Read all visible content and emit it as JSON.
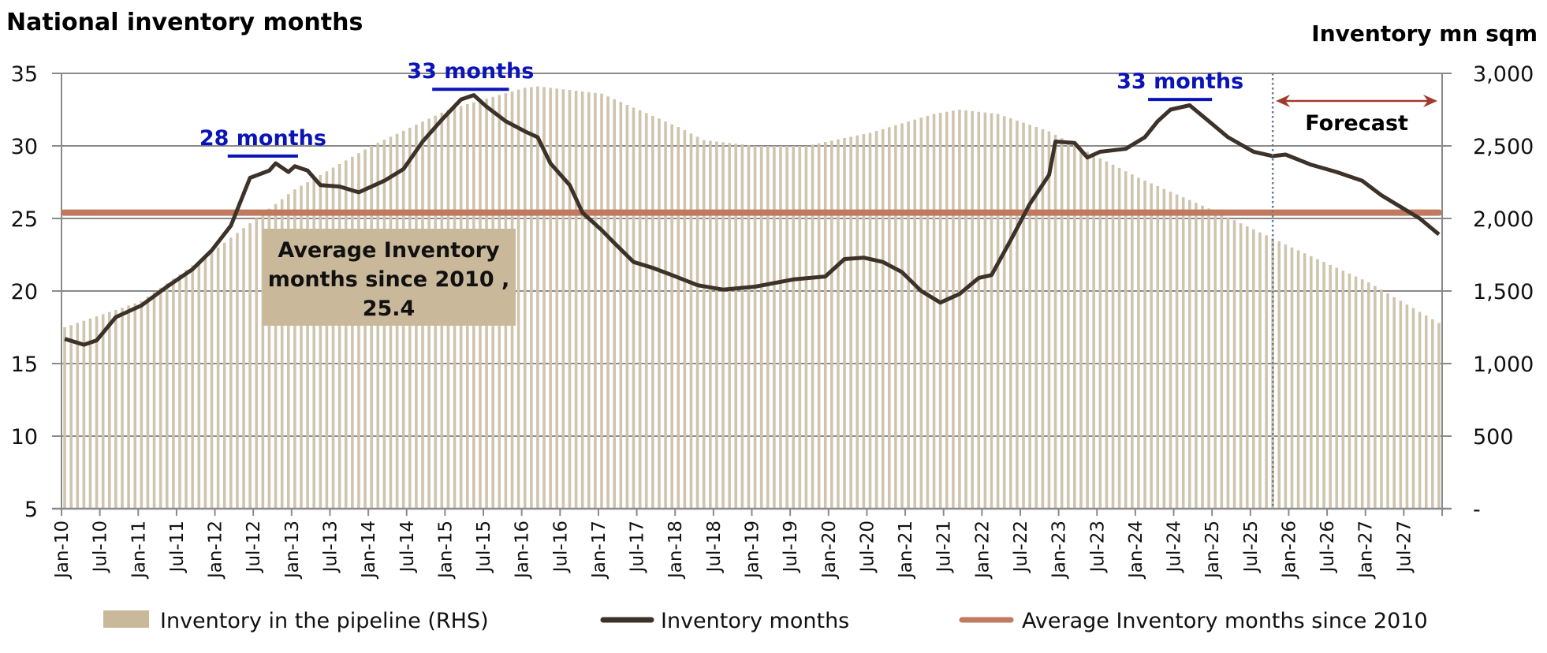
{
  "chart_data": {
    "type": "bar+line",
    "title": "National inventory months",
    "ylabel_left": "",
    "ylabel_right": "Inventory mn sqm",
    "x_unit": "month index from Jan-10",
    "xlim": [
      0,
      216
    ],
    "ylim_left": [
      5,
      35
    ],
    "ylim_right": [
      0,
      3000
    ],
    "yticks_left": [
      "35",
      "30",
      "25",
      "20",
      "15",
      "10",
      "5"
    ],
    "yticks_left_values": [
      35,
      30,
      25,
      20,
      15,
      10,
      5
    ],
    "yticks_right": [
      "3,000",
      "2,500",
      "2,000",
      "1,500",
      "1,000",
      "500",
      "-"
    ],
    "yticks_right_values": [
      3000,
      2500,
      2000,
      1500,
      1000,
      500,
      0
    ],
    "xticks": [
      "Jan-10",
      "Jul-10",
      "Jan-11",
      "Jul-11",
      "Jan-12",
      "Jul-12",
      "Jan-13",
      "Jul-13",
      "Jan-14",
      "Jul-14",
      "Jan-15",
      "Jul-15",
      "Jan-16",
      "Jul-16",
      "Jan-17",
      "Jul-17",
      "Jan-18",
      "Jul-18",
      "Jan-19",
      "Jul-19",
      "Jan-20",
      "Jul-20",
      "Jan-21",
      "Jul-21",
      "Jan-22",
      "Jul-22",
      "Jan-23",
      "Jul-23",
      "Jan-24",
      "Jul-24",
      "Jan-25",
      "Jul-25",
      "Jan-26",
      "Jul-26",
      "Jan-27",
      "Jul-27"
    ],
    "grid": true,
    "legend_position": "bottom",
    "series": [
      {
        "name": "Inventory in the pipeline (RHS)",
        "type": "bar",
        "axis": "right",
        "color": "#cfc4ae",
        "monthly_values": [
          1250,
          1265,
          1280,
          1295,
          1310,
          1325,
          1340,
          1355,
          1370,
          1385,
          1400,
          1415,
          1430,
          1461,
          1492,
          1523,
          1553,
          1584,
          1615,
          1646,
          1677,
          1708,
          1738,
          1769,
          1800,
          1833,
          1867,
          1900,
          1933,
          1967,
          2000,
          2033,
          2067,
          2100,
          2133,
          2167,
          2200,
          2225,
          2250,
          2275,
          2300,
          2325,
          2350,
          2375,
          2400,
          2425,
          2450,
          2475,
          2500,
          2521,
          2542,
          2563,
          2583,
          2604,
          2625,
          2646,
          2667,
          2688,
          2708,
          2729,
          2750,
          2763,
          2775,
          2788,
          2800,
          2813,
          2825,
          2838,
          2850,
          2863,
          2875,
          2888,
          2900,
          2905,
          2910,
          2905,
          2900,
          2895,
          2890,
          2885,
          2880,
          2875,
          2870,
          2865,
          2860,
          2841,
          2822,
          2803,
          2783,
          2764,
          2745,
          2726,
          2707,
          2688,
          2668,
          2649,
          2630,
          2608,
          2585,
          2563,
          2540,
          2535,
          2530,
          2525,
          2520,
          2515,
          2510,
          2505,
          2500,
          2500,
          2500,
          2500,
          2500,
          2500,
          2500,
          2500,
          2500,
          2509,
          2518,
          2527,
          2536,
          2545,
          2554,
          2563,
          2572,
          2581,
          2590,
          2603,
          2616,
          2629,
          2642,
          2655,
          2668,
          2681,
          2694,
          2707,
          2720,
          2728,
          2735,
          2743,
          2750,
          2745,
          2740,
          2735,
          2730,
          2725,
          2720,
          2705,
          2690,
          2675,
          2660,
          2645,
          2630,
          2615,
          2600,
          2577,
          2553,
          2530,
          2507,
          2483,
          2460,
          2438,
          2415,
          2393,
          2370,
          2348,
          2325,
          2303,
          2280,
          2261,
          2242,
          2223,
          2203,
          2184,
          2165,
          2146,
          2127,
          2108,
          2088,
          2069,
          2050,
          2029,
          2008,
          1988,
          1967,
          1946,
          1925,
          1904,
          1883,
          1863,
          1842,
          1821,
          1800,
          1780,
          1760,
          1740,
          1720,
          1700,
          1680,
          1660,
          1640,
          1620,
          1600,
          1580,
          1560,
          1535,
          1509,
          1484,
          1458,
          1433,
          1407,
          1382,
          1356,
          1331,
          1305,
          1280
        ]
      },
      {
        "name": "Inventory months",
        "type": "line",
        "axis": "left",
        "color": "#3d3229",
        "points": [
          [
            0,
            16.7
          ],
          [
            3,
            16.3
          ],
          [
            5,
            16.6
          ],
          [
            8,
            18.2
          ],
          [
            12,
            19.0
          ],
          [
            16,
            20.3
          ],
          [
            20,
            21.5
          ],
          [
            23,
            22.8
          ],
          [
            26,
            24.5
          ],
          [
            29,
            27.8
          ],
          [
            32,
            28.3
          ],
          [
            33,
            28.8
          ],
          [
            35,
            28.2
          ],
          [
            36,
            28.6
          ],
          [
            38,
            28.3
          ],
          [
            40,
            27.3
          ],
          [
            43,
            27.2
          ],
          [
            46,
            26.8
          ],
          [
            50,
            27.6
          ],
          [
            53,
            28.4
          ],
          [
            56,
            30.3
          ],
          [
            59,
            31.8
          ],
          [
            62,
            33.2
          ],
          [
            64,
            33.5
          ],
          [
            66,
            32.7
          ],
          [
            69,
            31.7
          ],
          [
            72,
            31.0
          ],
          [
            74,
            30.6
          ],
          [
            76,
            28.8
          ],
          [
            79,
            27.3
          ],
          [
            81,
            25.4
          ],
          [
            84,
            24.2
          ],
          [
            86,
            23.3
          ],
          [
            89,
            22.0
          ],
          [
            92,
            21.6
          ],
          [
            95,
            21.1
          ],
          [
            99,
            20.4
          ],
          [
            103,
            20.1
          ],
          [
            108,
            20.3
          ],
          [
            114,
            20.8
          ],
          [
            119,
            21.0
          ],
          [
            122,
            22.2
          ],
          [
            125,
            22.3
          ],
          [
            128,
            22.0
          ],
          [
            131,
            21.3
          ],
          [
            134,
            20.0
          ],
          [
            137,
            19.2
          ],
          [
            140,
            19.8
          ],
          [
            143,
            20.9
          ],
          [
            145,
            21.1
          ],
          [
            148,
            23.5
          ],
          [
            151,
            26.0
          ],
          [
            154,
            28.0
          ],
          [
            155,
            30.3
          ],
          [
            158,
            30.2
          ],
          [
            160,
            29.2
          ],
          [
            162,
            29.6
          ],
          [
            166,
            29.8
          ],
          [
            169,
            30.6
          ],
          [
            171,
            31.7
          ],
          [
            173,
            32.5
          ],
          [
            176,
            32.8
          ],
          [
            179,
            31.7
          ],
          [
            182,
            30.6
          ],
          [
            186,
            29.6
          ],
          [
            189,
            29.3
          ],
          [
            191,
            29.4
          ],
          [
            195,
            28.7
          ],
          [
            199,
            28.2
          ],
          [
            203,
            27.6
          ],
          [
            206,
            26.6
          ],
          [
            209,
            25.8
          ],
          [
            212,
            25.0
          ],
          [
            215,
            23.9
          ]
        ]
      },
      {
        "name": "Average Inventory months since 2010",
        "type": "hline",
        "axis": "left",
        "color": "#c07a5f",
        "value": 25.4
      }
    ],
    "annotations": {
      "peak1": {
        "text": "28 months",
        "x_start": 26,
        "x_end": 37,
        "y": 29.3
      },
      "peak2": {
        "text": "33 months",
        "x_start": 58,
        "x_end": 70,
        "y": 33.9
      },
      "peak3": {
        "text": "33 months",
        "x_start": 170,
        "x_end": 180,
        "y": 33.2
      },
      "average_box": {
        "lines": [
          "Average Inventory",
          "months since 2010 ,",
          "25.4"
        ]
      },
      "forecast": {
        "text": "Forecast",
        "start": 189.5,
        "end": 216
      }
    }
  },
  "legend": [
    {
      "label": "Inventory in the pipeline (RHS)",
      "color": "#c9b99a",
      "kind": "box"
    },
    {
      "label": "Inventory months",
      "color": "#3d3229",
      "kind": "line"
    },
    {
      "label": "Average Inventory months since 2010",
      "color": "#c07a5f",
      "kind": "line"
    }
  ]
}
